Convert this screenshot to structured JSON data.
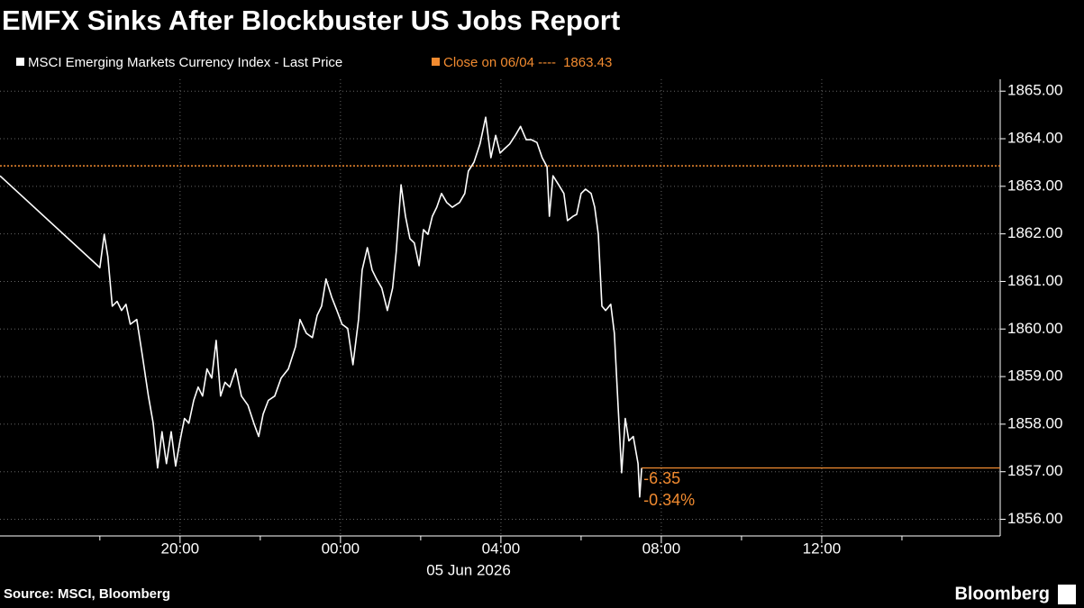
{
  "chart_data": {
    "type": "line",
    "title": "EMFX Sinks After Blockbuster US Jobs Report",
    "source": "Source: MSCI, Bloomberg",
    "brand": "Bloomberg",
    "x_date_label": "05 Jun 2026",
    "x": [
      -8.49,
      -6.0,
      -5.89,
      -5.8,
      -5.69,
      -5.57,
      -5.46,
      -5.35,
      -5.24,
      -5.08,
      -4.94,
      -4.79,
      -4.67,
      -4.56,
      -4.45,
      -4.34,
      -4.22,
      -4.11,
      -4.0,
      -3.89,
      -3.78,
      -3.66,
      -3.55,
      -3.44,
      -3.33,
      -3.21,
      -3.1,
      -2.99,
      -2.88,
      -2.76,
      -2.61,
      -2.47,
      -2.31,
      -2.16,
      -2.04,
      -1.93,
      -1.8,
      -1.64,
      -1.48,
      -1.3,
      -1.12,
      -1.01,
      -0.85,
      -0.7,
      -0.58,
      -0.47,
      -0.36,
      -0.22,
      -0.09,
      0.04,
      0.18,
      0.31,
      0.45,
      0.54,
      0.67,
      0.79,
      0.9,
      1.03,
      1.17,
      1.3,
      1.39,
      1.51,
      1.62,
      1.73,
      1.84,
      1.96,
      2.07,
      2.18,
      2.29,
      2.4,
      2.52,
      2.65,
      2.79,
      2.97,
      3.1,
      3.19,
      3.33,
      3.48,
      3.62,
      3.75,
      3.87,
      3.98,
      4.09,
      4.22,
      4.36,
      4.49,
      4.63,
      4.76,
      4.9,
      5.03,
      5.15,
      5.21,
      5.3,
      5.44,
      5.57,
      5.66,
      5.8,
      5.89,
      6.0,
      6.11,
      6.25,
      6.34,
      6.43,
      6.52,
      6.61,
      6.74,
      6.83,
      6.92,
      7.01,
      7.1,
      7.19,
      7.3,
      7.42,
      7.46,
      7.51
    ],
    "series": [
      {
        "name": "MSCI Emerging Markets Currency Index - Last Price",
        "color": "#ffffff",
        "values": [
          1863.22,
          1861.29,
          1861.99,
          1861.52,
          1860.48,
          1860.58,
          1860.39,
          1860.52,
          1860.1,
          1860.2,
          1859.44,
          1858.59,
          1858.02,
          1857.08,
          1857.84,
          1857.17,
          1857.84,
          1857.12,
          1857.65,
          1858.12,
          1858.02,
          1858.5,
          1858.78,
          1858.59,
          1859.16,
          1858.97,
          1859.76,
          1858.59,
          1858.88,
          1858.78,
          1859.16,
          1858.59,
          1858.4,
          1858.02,
          1857.74,
          1858.21,
          1858.5,
          1858.59,
          1858.97,
          1859.16,
          1859.63,
          1860.2,
          1859.91,
          1859.82,
          1860.29,
          1860.48,
          1861.05,
          1860.67,
          1860.39,
          1860.1,
          1860.01,
          1859.25,
          1860.2,
          1861.24,
          1861.71,
          1861.24,
          1861.05,
          1860.86,
          1860.39,
          1860.86,
          1861.62,
          1863.03,
          1862.37,
          1861.9,
          1861.81,
          1861.33,
          1862.09,
          1861.99,
          1862.37,
          1862.56,
          1862.85,
          1862.66,
          1862.56,
          1862.66,
          1862.85,
          1863.32,
          1863.51,
          1863.89,
          1864.45,
          1863.6,
          1864.07,
          1863.7,
          1863.79,
          1863.89,
          1864.07,
          1864.26,
          1863.98,
          1863.98,
          1863.92,
          1863.6,
          1863.41,
          1862.37,
          1863.22,
          1863.03,
          1862.85,
          1862.28,
          1862.37,
          1862.41,
          1862.85,
          1862.94,
          1862.85,
          1862.56,
          1861.99,
          1860.48,
          1860.39,
          1860.52,
          1859.91,
          1858.4,
          1856.98,
          1858.12,
          1857.65,
          1857.74,
          1857.17,
          1856.47,
          1857.08
        ]
      }
    ],
    "reference_lines": [
      {
        "name": "Close on 06/04 ----",
        "value": 1863.43,
        "color": "#f28b30"
      }
    ],
    "annotations": [
      "-6.35",
      "-0.34%"
    ],
    "annotation_color": "#f28b30",
    "xlim": [
      -8.49,
      16.45
    ],
    "xticks": [
      {
        "value": -4,
        "label": "20:00"
      },
      {
        "value": 0,
        "label": "00:00"
      },
      {
        "value": 4,
        "label": "04:00"
      },
      {
        "value": 8,
        "label": "08:00"
      },
      {
        "value": 12,
        "label": "12:00"
      }
    ],
    "xminorticks": [
      -6,
      -2,
      2,
      6,
      10,
      14
    ],
    "ylim": [
      1855.65,
      1865.25
    ],
    "yticks": [
      {
        "value": 1856,
        "label": "1856.00"
      },
      {
        "value": 1857,
        "label": "1857.00"
      },
      {
        "value": 1858,
        "label": "1858.00"
      },
      {
        "value": 1859,
        "label": "1859.00"
      },
      {
        "value": 1860,
        "label": "1860.00"
      },
      {
        "value": 1861,
        "label": "1861.00"
      },
      {
        "value": 1862,
        "label": "1862.00"
      },
      {
        "value": 1863,
        "label": "1863.00"
      },
      {
        "value": 1864,
        "label": "1864.00"
      },
      {
        "value": 1865,
        "label": "1865.00"
      }
    ],
    "grid": true
  }
}
